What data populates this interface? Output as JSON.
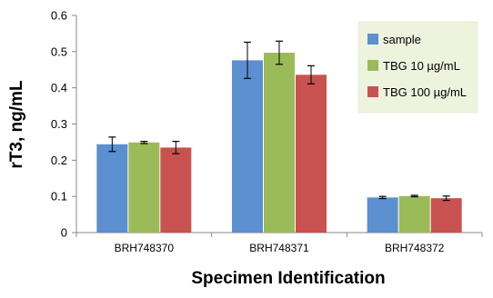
{
  "chart_data": {
    "type": "bar",
    "title": "",
    "xlabel": "Specimen Identification",
    "ylabel": "rT3, ng/mL",
    "categories": [
      "BRH748370",
      "BRH748371",
      "BRH748372"
    ],
    "ylim": [
      0,
      0.6
    ],
    "yticks": [
      "0",
      "0.1",
      "0.2",
      "0.3",
      "0.4",
      "0.5",
      "0.6"
    ],
    "grid": false,
    "legend_position": "top-right",
    "legend_background": "#eef3de",
    "series": [
      {
        "name": "sample",
        "color": "#5b8fcf",
        "values": [
          0.244,
          0.476,
          0.097
        ],
        "errors": [
          0.02,
          0.05,
          0.003
        ]
      },
      {
        "name": "TBG 10 µg/mL",
        "color": "#9bbb59",
        "values": [
          0.249,
          0.497,
          0.101
        ],
        "errors": [
          0.003,
          0.032,
          0.002
        ]
      },
      {
        "name": "TBG 100 µg/mL",
        "color": "#c8524f",
        "values": [
          0.235,
          0.436,
          0.095
        ],
        "errors": [
          0.017,
          0.025,
          0.006
        ]
      }
    ]
  }
}
